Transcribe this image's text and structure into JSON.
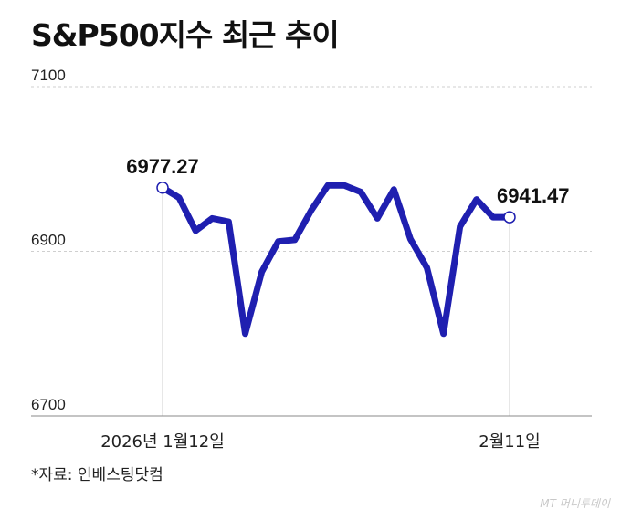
{
  "title": "S&P500지수 최근 추이",
  "source": "*자료: 인베스팅닷컴",
  "watermark": "MT 머니투데이",
  "chart_data": {
    "type": "line",
    "title": "S&P500지수 최근 추이",
    "ylim": [
      6700,
      7100
    ],
    "yticks": [
      6700,
      6900,
      7100
    ],
    "x_tick_labels": [
      {
        "index": 0,
        "label": "2026년 1월12일"
      },
      {
        "index": 21,
        "label": "2월11일"
      }
    ],
    "grid": true,
    "color": "#1f1fb0",
    "values": [
      6977.27,
      6965,
      6925,
      6940,
      6936,
      6800,
      6875,
      6912,
      6914,
      6950,
      6980,
      6980,
      6972,
      6940,
      6975,
      6915,
      6880,
      6800,
      6930,
      6963,
      6941.47,
      6941.47
    ],
    "annotations": [
      {
        "index": 0,
        "label": "6977.27"
      },
      {
        "index": 21,
        "label": "6941.47"
      }
    ]
  }
}
